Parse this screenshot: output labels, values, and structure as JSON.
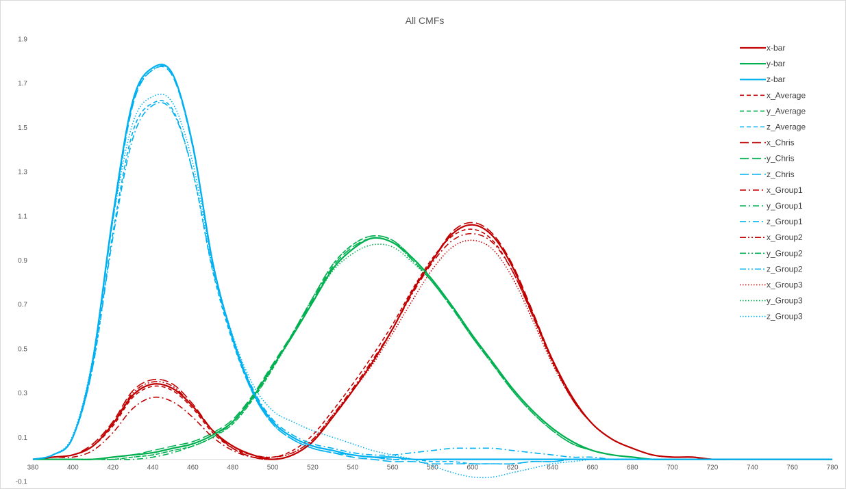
{
  "chart_data": {
    "type": "line",
    "title": "All CMFs",
    "xlabel": "",
    "ylabel": "",
    "xlim": [
      380,
      780
    ],
    "ylim": [
      -0.1,
      1.9
    ],
    "x_ticks": [
      "380",
      "400",
      "420",
      "440",
      "460",
      "480",
      "500",
      "520",
      "540",
      "560",
      "580",
      "600",
      "620",
      "640",
      "660",
      "680",
      "700",
      "720",
      "740",
      "760",
      "780"
    ],
    "y_ticks": [
      "-0.1",
      "0.1",
      "0.3",
      "0.5",
      "0.7",
      "0.9",
      "1.1",
      "1.3",
      "1.5",
      "1.7",
      "1.9"
    ],
    "grid": false,
    "legend_position": "right",
    "x": [
      380,
      390,
      400,
      410,
      420,
      430,
      440,
      450,
      460,
      470,
      480,
      490,
      500,
      510,
      520,
      530,
      540,
      550,
      560,
      570,
      580,
      590,
      600,
      610,
      620,
      630,
      640,
      650,
      660,
      670,
      680,
      690,
      700,
      710,
      720,
      730,
      740,
      750,
      760,
      770,
      780
    ],
    "series": [
      {
        "name": "x-bar",
        "color": "#c00000",
        "style": "solid",
        "values": [
          0.0,
          0.01,
          0.02,
          0.06,
          0.16,
          0.29,
          0.34,
          0.32,
          0.24,
          0.13,
          0.06,
          0.02,
          0.0,
          0.02,
          0.08,
          0.19,
          0.31,
          0.44,
          0.59,
          0.76,
          0.9,
          1.02,
          1.06,
          1.01,
          0.87,
          0.66,
          0.45,
          0.28,
          0.16,
          0.09,
          0.05,
          0.02,
          0.01,
          0.01,
          0.0,
          0.0,
          0.0,
          0.0,
          0.0,
          0.0,
          0.0
        ]
      },
      {
        "name": "y-bar",
        "color": "#00b050",
        "style": "solid",
        "values": [
          0.0,
          0.0,
          0.0,
          0.0,
          0.01,
          0.02,
          0.03,
          0.05,
          0.07,
          0.11,
          0.17,
          0.28,
          0.42,
          0.56,
          0.71,
          0.86,
          0.95,
          1.0,
          0.98,
          0.91,
          0.81,
          0.69,
          0.56,
          0.44,
          0.32,
          0.22,
          0.14,
          0.08,
          0.04,
          0.02,
          0.01,
          0.0,
          0.0,
          0.0,
          0.0,
          0.0,
          0.0,
          0.0,
          0.0,
          0.0,
          0.0
        ]
      },
      {
        "name": "z-bar",
        "color": "#00b0f0",
        "style": "solid",
        "values": [
          0.0,
          0.02,
          0.1,
          0.45,
          1.1,
          1.62,
          1.77,
          1.74,
          1.42,
          0.89,
          0.55,
          0.31,
          0.17,
          0.1,
          0.06,
          0.04,
          0.02,
          0.01,
          0.01,
          0.0,
          0.0,
          0.0,
          0.0,
          0.0,
          0.0,
          0.0,
          0.0,
          0.0,
          0.0,
          0.0,
          0.0,
          0.0,
          0.0,
          0.0,
          0.0,
          0.0,
          0.0,
          0.0,
          0.0,
          0.0,
          0.0
        ]
      },
      {
        "name": "x_Average",
        "color": "#c00000",
        "style": "dash",
        "values": [
          0.0,
          0.01,
          0.02,
          0.06,
          0.15,
          0.28,
          0.33,
          0.31,
          0.23,
          0.12,
          0.05,
          0.02,
          0.01,
          0.04,
          0.11,
          0.22,
          0.34,
          0.47,
          0.61,
          0.77,
          0.91,
          1.01,
          1.04,
          0.99,
          0.85,
          0.65,
          0.44,
          0.27,
          0.16,
          0.09,
          0.05,
          0.02,
          0.01,
          0.01,
          0.0,
          0.0,
          0.0,
          0.0,
          0.0,
          0.0,
          0.0
        ]
      },
      {
        "name": "y_Average",
        "color": "#00b050",
        "style": "dash",
        "values": [
          0.0,
          0.0,
          0.0,
          0.0,
          0.0,
          0.01,
          0.02,
          0.04,
          0.06,
          0.1,
          0.16,
          0.27,
          0.41,
          0.57,
          0.73,
          0.88,
          0.97,
          1.01,
          0.99,
          0.91,
          0.81,
          0.69,
          0.56,
          0.44,
          0.32,
          0.22,
          0.14,
          0.08,
          0.04,
          0.02,
          0.01,
          0.0,
          0.0,
          0.0,
          0.0,
          0.0,
          0.0,
          0.0,
          0.0,
          0.0,
          0.0
        ]
      },
      {
        "name": "z_Average",
        "color": "#00b0f0",
        "style": "dash",
        "values": [
          0.0,
          0.02,
          0.1,
          0.42,
          1.02,
          1.48,
          1.61,
          1.58,
          1.3,
          0.85,
          0.53,
          0.3,
          0.16,
          0.09,
          0.05,
          0.03,
          0.02,
          0.01,
          0.0,
          0.0,
          -0.01,
          -0.01,
          -0.02,
          -0.02,
          -0.02,
          -0.01,
          -0.01,
          0.0,
          0.0,
          0.0,
          0.0,
          0.0,
          0.0,
          0.0,
          0.0,
          0.0,
          0.0,
          0.0,
          0.0,
          0.0,
          0.0
        ]
      },
      {
        "name": "x_Chris",
        "color": "#c00000",
        "style": "longdash",
        "values": [
          0.0,
          0.01,
          0.02,
          0.07,
          0.17,
          0.31,
          0.36,
          0.34,
          0.25,
          0.13,
          0.05,
          0.01,
          0.0,
          0.02,
          0.08,
          0.19,
          0.31,
          0.44,
          0.59,
          0.76,
          0.9,
          1.03,
          1.07,
          1.02,
          0.88,
          0.67,
          0.45,
          0.28,
          0.16,
          0.09,
          0.05,
          0.02,
          0.01,
          0.01,
          0.0,
          0.0,
          0.0,
          0.0,
          0.0,
          0.0,
          0.0
        ]
      },
      {
        "name": "y_Chris",
        "color": "#00b050",
        "style": "longdash",
        "values": [
          0.0,
          0.0,
          0.0,
          0.0,
          0.01,
          0.02,
          0.04,
          0.06,
          0.08,
          0.12,
          0.18,
          0.29,
          0.43,
          0.57,
          0.72,
          0.87,
          0.96,
          1.0,
          0.98,
          0.9,
          0.8,
          0.68,
          0.55,
          0.43,
          0.31,
          0.21,
          0.13,
          0.07,
          0.04,
          0.02,
          0.01,
          0.0,
          0.0,
          0.0,
          0.0,
          0.0,
          0.0,
          0.0,
          0.0,
          0.0,
          0.0
        ]
      },
      {
        "name": "z_Chris",
        "color": "#00b0f0",
        "style": "longdash",
        "values": [
          0.0,
          0.02,
          0.1,
          0.44,
          1.08,
          1.6,
          1.76,
          1.73,
          1.41,
          0.88,
          0.54,
          0.3,
          0.16,
          0.09,
          0.05,
          0.03,
          0.01,
          0.0,
          -0.01,
          -0.01,
          -0.02,
          -0.02,
          -0.02,
          -0.02,
          -0.02,
          -0.01,
          -0.01,
          0.0,
          0.0,
          0.0,
          0.0,
          0.0,
          0.0,
          0.0,
          0.0,
          0.0,
          0.0,
          0.0,
          0.0,
          0.0,
          0.0
        ]
      },
      {
        "name": "x_Group1",
        "color": "#c00000",
        "style": "dashdot",
        "values": [
          0.0,
          0.01,
          0.01,
          0.04,
          0.12,
          0.23,
          0.28,
          0.26,
          0.19,
          0.1,
          0.04,
          0.01,
          0.01,
          0.03,
          0.09,
          0.2,
          0.32,
          0.45,
          0.59,
          0.75,
          0.89,
          0.99,
          1.02,
          0.98,
          0.85,
          0.65,
          0.44,
          0.27,
          0.16,
          0.09,
          0.05,
          0.02,
          0.01,
          0.01,
          0.0,
          0.0,
          0.0,
          0.0,
          0.0,
          0.0,
          0.0
        ]
      },
      {
        "name": "y_Group1",
        "color": "#00b050",
        "style": "dashdot",
        "values": [
          0.0,
          0.0,
          0.0,
          0.0,
          0.0,
          0.0,
          0.01,
          0.03,
          0.06,
          0.1,
          0.17,
          0.28,
          0.42,
          0.57,
          0.73,
          0.88,
          0.97,
          1.01,
          0.99,
          0.91,
          0.81,
          0.69,
          0.56,
          0.44,
          0.32,
          0.22,
          0.14,
          0.08,
          0.04,
          0.02,
          0.01,
          0.0,
          0.0,
          0.0,
          0.0,
          0.0,
          0.0,
          0.0,
          0.0,
          0.0,
          0.0
        ]
      },
      {
        "name": "z_Group1",
        "color": "#00b0f0",
        "style": "dashdot",
        "values": [
          0.0,
          0.02,
          0.1,
          0.42,
          1.0,
          1.45,
          1.6,
          1.57,
          1.3,
          0.86,
          0.55,
          0.32,
          0.18,
          0.11,
          0.07,
          0.05,
          0.03,
          0.02,
          0.02,
          0.03,
          0.04,
          0.05,
          0.05,
          0.05,
          0.04,
          0.03,
          0.02,
          0.01,
          0.01,
          0.0,
          0.0,
          0.0,
          0.0,
          0.0,
          0.0,
          0.0,
          0.0,
          0.0,
          0.0,
          0.0,
          0.0
        ]
      },
      {
        "name": "x_Group2",
        "color": "#c00000",
        "style": "dashdotdot",
        "values": [
          0.0,
          0.01,
          0.02,
          0.06,
          0.16,
          0.3,
          0.35,
          0.33,
          0.24,
          0.13,
          0.05,
          0.01,
          0.0,
          0.02,
          0.08,
          0.19,
          0.31,
          0.44,
          0.59,
          0.76,
          0.9,
          1.02,
          1.06,
          1.01,
          0.87,
          0.66,
          0.45,
          0.28,
          0.16,
          0.09,
          0.05,
          0.02,
          0.01,
          0.01,
          0.0,
          0.0,
          0.0,
          0.0,
          0.0,
          0.0,
          0.0
        ]
      },
      {
        "name": "y_Group2",
        "color": "#00b050",
        "style": "dashdotdot",
        "values": [
          0.0,
          0.0,
          0.0,
          0.0,
          0.01,
          0.02,
          0.03,
          0.05,
          0.07,
          0.11,
          0.17,
          0.28,
          0.42,
          0.56,
          0.71,
          0.86,
          0.95,
          1.0,
          0.98,
          0.9,
          0.8,
          0.68,
          0.55,
          0.43,
          0.31,
          0.21,
          0.13,
          0.07,
          0.04,
          0.02,
          0.01,
          0.0,
          0.0,
          0.0,
          0.0,
          0.0,
          0.0,
          0.0,
          0.0,
          0.0,
          0.0
        ]
      },
      {
        "name": "z_Group2",
        "color": "#00b0f0",
        "style": "dashdotdot",
        "values": [
          0.0,
          0.02,
          0.1,
          0.45,
          1.09,
          1.61,
          1.76,
          1.74,
          1.42,
          0.89,
          0.54,
          0.3,
          0.16,
          0.09,
          0.05,
          0.03,
          0.02,
          0.01,
          0.0,
          0.0,
          0.0,
          0.0,
          0.0,
          0.0,
          0.0,
          0.0,
          0.0,
          0.0,
          0.0,
          0.0,
          0.0,
          0.0,
          0.0,
          0.0,
          0.0,
          0.0,
          0.0,
          0.0,
          0.0,
          0.0,
          0.0
        ]
      },
      {
        "name": "x_Group3",
        "color": "#c00000",
        "style": "dot",
        "values": [
          0.0,
          0.01,
          0.02,
          0.06,
          0.16,
          0.29,
          0.34,
          0.32,
          0.24,
          0.13,
          0.06,
          0.02,
          0.01,
          0.03,
          0.09,
          0.2,
          0.31,
          0.43,
          0.57,
          0.72,
          0.86,
          0.96,
          0.99,
          0.95,
          0.82,
          0.63,
          0.43,
          0.27,
          0.16,
          0.09,
          0.05,
          0.02,
          0.01,
          0.01,
          0.0,
          0.0,
          0.0,
          0.0,
          0.0,
          0.0,
          0.0
        ]
      },
      {
        "name": "y_Group3",
        "color": "#00b050",
        "style": "dot",
        "values": [
          0.0,
          0.0,
          0.0,
          0.0,
          0.0,
          0.01,
          0.02,
          0.04,
          0.06,
          0.1,
          0.16,
          0.27,
          0.41,
          0.56,
          0.71,
          0.85,
          0.93,
          0.97,
          0.96,
          0.89,
          0.8,
          0.68,
          0.55,
          0.43,
          0.31,
          0.21,
          0.13,
          0.07,
          0.04,
          0.02,
          0.01,
          0.0,
          0.0,
          0.0,
          0.0,
          0.0,
          0.0,
          0.0,
          0.0,
          0.0,
          0.0
        ]
      },
      {
        "name": "z_Group3",
        "color": "#00b0f0",
        "style": "dot",
        "values": [
          0.0,
          0.02,
          0.11,
          0.46,
          1.08,
          1.52,
          1.64,
          1.61,
          1.34,
          0.88,
          0.56,
          0.34,
          0.22,
          0.17,
          0.13,
          0.1,
          0.07,
          0.04,
          0.02,
          0.0,
          -0.03,
          -0.06,
          -0.08,
          -0.08,
          -0.06,
          -0.04,
          -0.02,
          -0.01,
          0.0,
          0.0,
          0.0,
          0.0,
          0.0,
          0.0,
          0.0,
          0.0,
          0.0,
          0.0,
          0.0,
          0.0,
          0.0
        ]
      }
    ]
  }
}
